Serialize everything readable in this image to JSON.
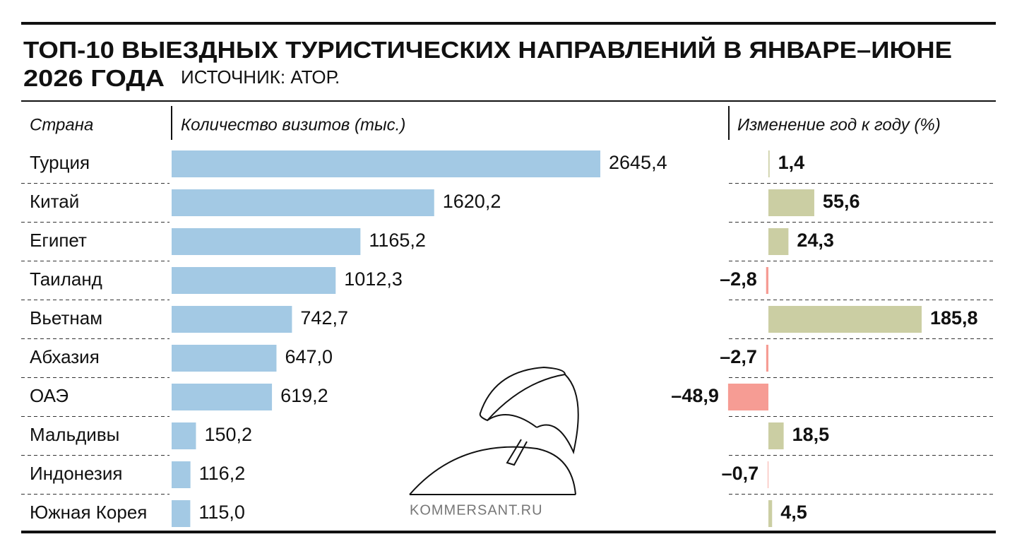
{
  "chart_data": {
    "type": "bar",
    "title_lines": [
      "ТОП-10 ВЫЕЗДНЫХ ТУРИСТИЧЕСКИХ НАПРАВЛЕНИЙ В ЯНВАРЕ–ИЮНЕ",
      "2026 ГОДА"
    ],
    "source": "ИСТОЧНИК: АТОР.",
    "category_label": "Страна",
    "categories": [
      "Турция",
      "Китай",
      "Египет",
      "Таиланд",
      "Вьетнам",
      "Абхазия",
      "ОАЭ",
      "Мальдивы",
      "Индонезия",
      "Южная Корея"
    ],
    "series": [
      {
        "name": "Количество визитов (тыс.)",
        "color": "#a3c9e4",
        "values": [
          2645.4,
          1620.2,
          1165.2,
          1012.3,
          742.7,
          647.0,
          619.2,
          150.2,
          116.2,
          115.0
        ],
        "value_labels": [
          "2645,4",
          "1620,2",
          "1165,2",
          "1012,3",
          "742,7",
          "647,0",
          "619,2",
          "150,2",
          "116,2",
          "115,0"
        ]
      },
      {
        "name": "Изменение год к году (%)",
        "color": "#cbcea3",
        "negative_color": "#f69c94",
        "values": [
          1.4,
          55.6,
          24.3,
          -2.8,
          185.8,
          -2.7,
          -48.9,
          18.5,
          -0.7,
          4.5
        ],
        "value_labels": [
          "1,4",
          "55,6",
          "24,3",
          "–2,8",
          "185,8",
          "–2,7",
          "–48,9",
          "18,5",
          "–0,7",
          "4,5"
        ]
      }
    ],
    "watermark": "KOMMERSANT.RU"
  }
}
